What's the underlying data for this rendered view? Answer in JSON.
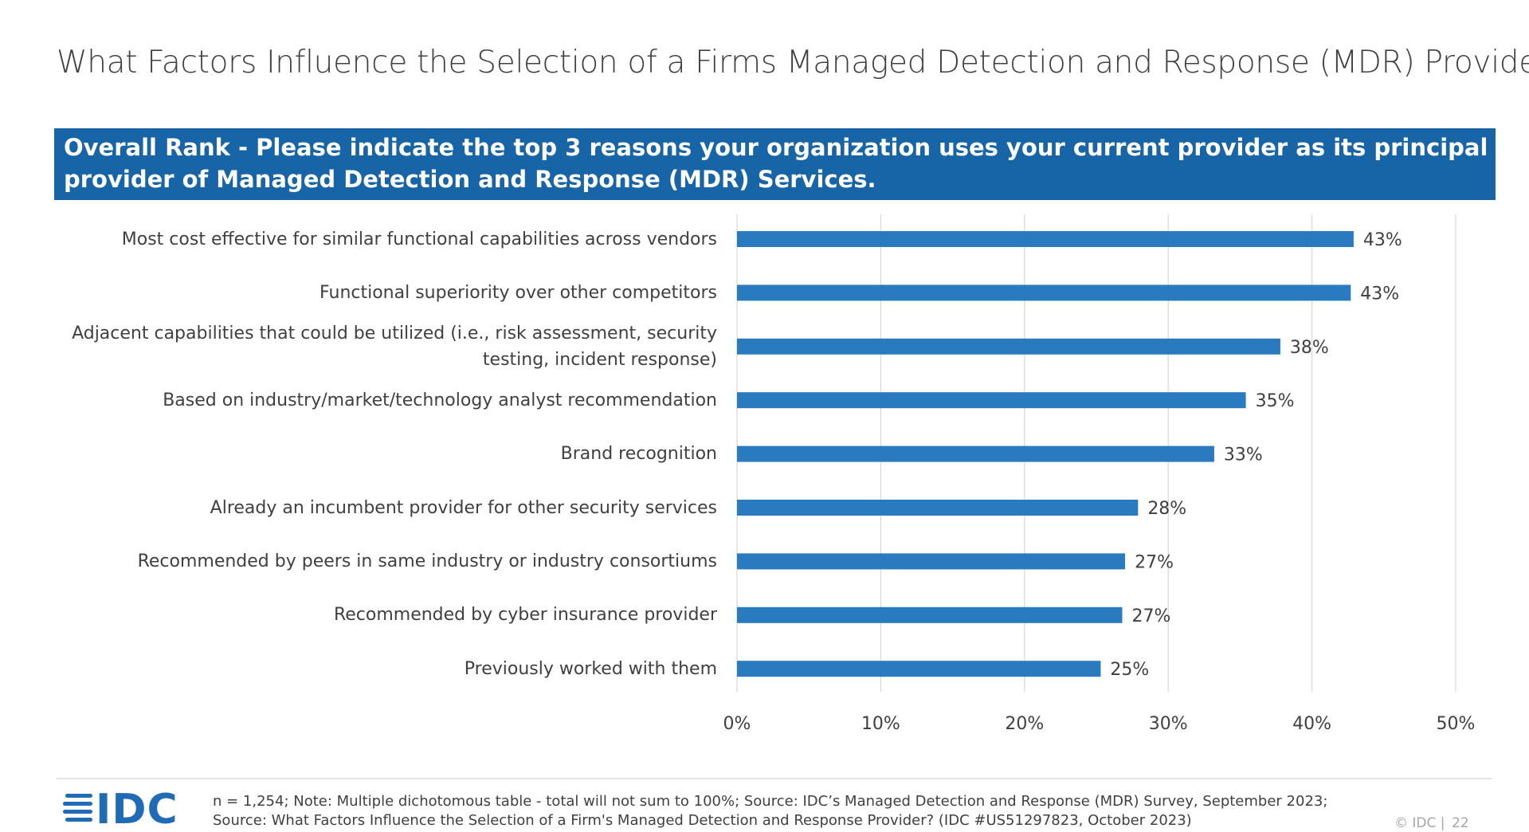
{
  "title": "What Factors Influence the Selection of a Firms Managed Detection and Response (MDR) Provider?",
  "chart_data": {
    "type": "hbar",
    "subtitle": "Overall Rank - Please indicate the top 3 reasons your organization uses your current provider as its principal provider of Managed Detection and Response (MDR) Services.",
    "categories": [
      "Most cost effective for similar functional capabilities across vendors",
      "Functional superiority over other competitors",
      "Adjacent capabilities that could be utilized (i.e., risk assessment, security testing, incident response)",
      "Based on industry/market/technology analyst recommendation",
      "Brand recognition",
      "Already an incumbent provider for other security services",
      "Recommended by peers in same industry or industry consortiums",
      "Recommended by cyber insurance provider",
      "Previously worked with them"
    ],
    "values": [
      42.9,
      42.7,
      37.8,
      35.4,
      33.2,
      27.9,
      27.0,
      26.8,
      25.3
    ],
    "value_labels": [
      "43%",
      "43%",
      "38%",
      "35%",
      "33%",
      "28%",
      "27%",
      "27%",
      "25%"
    ],
    "color": "#2a7abf",
    "xlim": [
      0,
      50
    ],
    "xticks": [
      {
        "value": 0,
        "label": "0%"
      },
      {
        "value": 10,
        "label": "10%"
      },
      {
        "value": 20,
        "label": "20%"
      },
      {
        "value": 30,
        "label": "30%"
      },
      {
        "value": 40,
        "label": "40%"
      },
      {
        "value": 50,
        "label": "50%"
      }
    ],
    "grid": true
  },
  "footer": {
    "note": "n = 1,254; Note: Multiple dichotomous table - total will not sum to 100%; Source: IDC’s Managed Detection and Response (MDR) Survey, September 2023; Source: What Factors Influence the Selection of a Firm's Managed Detection and Response Provider? (IDC #US51297823, October 2023)",
    "logo": "IDC",
    "copyright": "© IDC |",
    "page": "22"
  }
}
